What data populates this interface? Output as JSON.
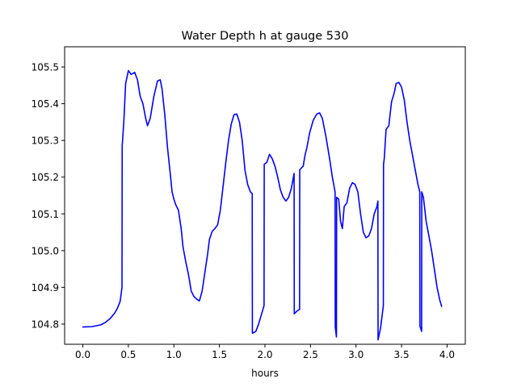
{
  "chart_data": {
    "type": "line",
    "title": "Water Depth h at gauge 530",
    "xlabel": "hours",
    "ylabel": "",
    "xlim": [
      -0.2,
      4.2
    ],
    "ylim": [
      104.745,
      105.555
    ],
    "xticks": [
      0.0,
      0.5,
      1.0,
      1.5,
      2.0,
      2.5,
      3.0,
      3.5,
      4.0
    ],
    "xtick_labels": [
      "0.0",
      "0.5",
      "1.0",
      "1.5",
      "2.0",
      "2.5",
      "3.0",
      "3.5",
      "4.0"
    ],
    "yticks": [
      104.8,
      104.9,
      105.0,
      105.1,
      105.2,
      105.3,
      105.4,
      105.5
    ],
    "ytick_labels": [
      "104.8",
      "104.9",
      "105.0",
      "105.1",
      "105.2",
      "105.3",
      "105.4",
      "105.5"
    ],
    "grid": false,
    "series": [
      {
        "name": "h",
        "color": "#0000ff",
        "points": [
          [
            0.0,
            104.792
          ],
          [
            0.1,
            104.793
          ],
          [
            0.2,
            104.798
          ],
          [
            0.25,
            104.805
          ],
          [
            0.3,
            104.815
          ],
          [
            0.35,
            104.83
          ],
          [
            0.38,
            104.843
          ],
          [
            0.41,
            104.862
          ],
          [
            0.43,
            104.9
          ],
          [
            0.432,
            105.285
          ],
          [
            0.45,
            105.35
          ],
          [
            0.47,
            105.455
          ],
          [
            0.5,
            105.49
          ],
          [
            0.53,
            105.48
          ],
          [
            0.57,
            105.485
          ],
          [
            0.6,
            105.465
          ],
          [
            0.63,
            105.42
          ],
          [
            0.66,
            105.4
          ],
          [
            0.69,
            105.36
          ],
          [
            0.71,
            105.34
          ],
          [
            0.74,
            105.36
          ],
          [
            0.78,
            105.42
          ],
          [
            0.82,
            105.462
          ],
          [
            0.85,
            105.465
          ],
          [
            0.87,
            105.44
          ],
          [
            0.9,
            105.37
          ],
          [
            0.93,
            105.28
          ],
          [
            0.96,
            105.21
          ],
          [
            0.98,
            105.16
          ],
          [
            1.0,
            105.14
          ],
          [
            1.02,
            105.125
          ],
          [
            1.05,
            105.11
          ],
          [
            1.08,
            105.06
          ],
          [
            1.1,
            105.01
          ],
          [
            1.13,
            104.97
          ],
          [
            1.16,
            104.935
          ],
          [
            1.19,
            104.89
          ],
          [
            1.22,
            104.875
          ],
          [
            1.25,
            104.868
          ],
          [
            1.28,
            104.863
          ],
          [
            1.31,
            104.89
          ],
          [
            1.34,
            104.94
          ],
          [
            1.37,
            104.99
          ],
          [
            1.39,
            105.03
          ],
          [
            1.42,
            105.052
          ],
          [
            1.45,
            105.06
          ],
          [
            1.48,
            105.07
          ],
          [
            1.51,
            105.11
          ],
          [
            1.54,
            105.175
          ],
          [
            1.57,
            105.24
          ],
          [
            1.6,
            105.3
          ],
          [
            1.63,
            105.345
          ],
          [
            1.66,
            105.37
          ],
          [
            1.69,
            105.372
          ],
          [
            1.72,
            105.35
          ],
          [
            1.75,
            105.3
          ],
          [
            1.78,
            105.22
          ],
          [
            1.81,
            105.18
          ],
          [
            1.84,
            105.16
          ],
          [
            1.86,
            105.155
          ],
          [
            1.862,
            104.775
          ],
          [
            1.9,
            104.78
          ],
          [
            1.93,
            104.8
          ],
          [
            1.96,
            104.825
          ],
          [
            1.99,
            104.85
          ],
          [
            1.992,
            105.235
          ],
          [
            2.02,
            105.24
          ],
          [
            2.05,
            105.262
          ],
          [
            2.08,
            105.25
          ],
          [
            2.11,
            105.23
          ],
          [
            2.14,
            105.2
          ],
          [
            2.17,
            105.165
          ],
          [
            2.2,
            105.145
          ],
          [
            2.23,
            105.135
          ],
          [
            2.26,
            105.145
          ],
          [
            2.29,
            105.17
          ],
          [
            2.32,
            105.21
          ],
          [
            2.322,
            104.828
          ],
          [
            2.35,
            104.835
          ],
          [
            2.38,
            104.84
          ],
          [
            2.382,
            105.22
          ],
          [
            2.4,
            105.225
          ],
          [
            2.42,
            105.23
          ],
          [
            2.44,
            105.26
          ],
          [
            2.46,
            105.28
          ],
          [
            2.49,
            105.32
          ],
          [
            2.53,
            105.355
          ],
          [
            2.57,
            105.372
          ],
          [
            2.6,
            105.375
          ],
          [
            2.63,
            105.36
          ],
          [
            2.67,
            105.31
          ],
          [
            2.71,
            105.25
          ],
          [
            2.74,
            105.2
          ],
          [
            2.77,
            105.16
          ],
          [
            2.772,
            104.792
          ],
          [
            2.785,
            104.765
          ],
          [
            2.787,
            105.145
          ],
          [
            2.81,
            105.14
          ],
          [
            2.83,
            105.08
          ],
          [
            2.85,
            105.06
          ],
          [
            2.87,
            105.12
          ],
          [
            2.9,
            105.13
          ],
          [
            2.93,
            105.17
          ],
          [
            2.96,
            105.185
          ],
          [
            2.99,
            105.18
          ],
          [
            3.02,
            105.16
          ],
          [
            3.05,
            105.1
          ],
          [
            3.08,
            105.05
          ],
          [
            3.11,
            105.035
          ],
          [
            3.14,
            105.04
          ],
          [
            3.17,
            105.06
          ],
          [
            3.2,
            105.1
          ],
          [
            3.23,
            105.12
          ],
          [
            3.24,
            105.135
          ],
          [
            3.242,
            104.757
          ],
          [
            3.27,
            104.79
          ],
          [
            3.3,
            104.85
          ],
          [
            3.302,
            105.235
          ],
          [
            3.31,
            105.25
          ],
          [
            3.33,
            105.33
          ],
          [
            3.36,
            105.34
          ],
          [
            3.39,
            105.405
          ],
          [
            3.42,
            105.43
          ],
          [
            3.44,
            105.455
          ],
          [
            3.47,
            105.458
          ],
          [
            3.5,
            105.445
          ],
          [
            3.53,
            105.41
          ],
          [
            3.56,
            105.35
          ],
          [
            3.59,
            105.3
          ],
          [
            3.62,
            105.26
          ],
          [
            3.65,
            105.22
          ],
          [
            3.68,
            105.18
          ],
          [
            3.7,
            105.16
          ],
          [
            3.702,
            104.795
          ],
          [
            3.72,
            104.78
          ],
          [
            3.722,
            105.16
          ],
          [
            3.74,
            105.145
          ],
          [
            3.77,
            105.08
          ],
          [
            3.8,
            105.04
          ],
          [
            3.83,
            105.0
          ],
          [
            3.86,
            104.95
          ],
          [
            3.89,
            104.9
          ],
          [
            3.92,
            104.865
          ],
          [
            3.94,
            104.848
          ]
        ]
      }
    ]
  }
}
